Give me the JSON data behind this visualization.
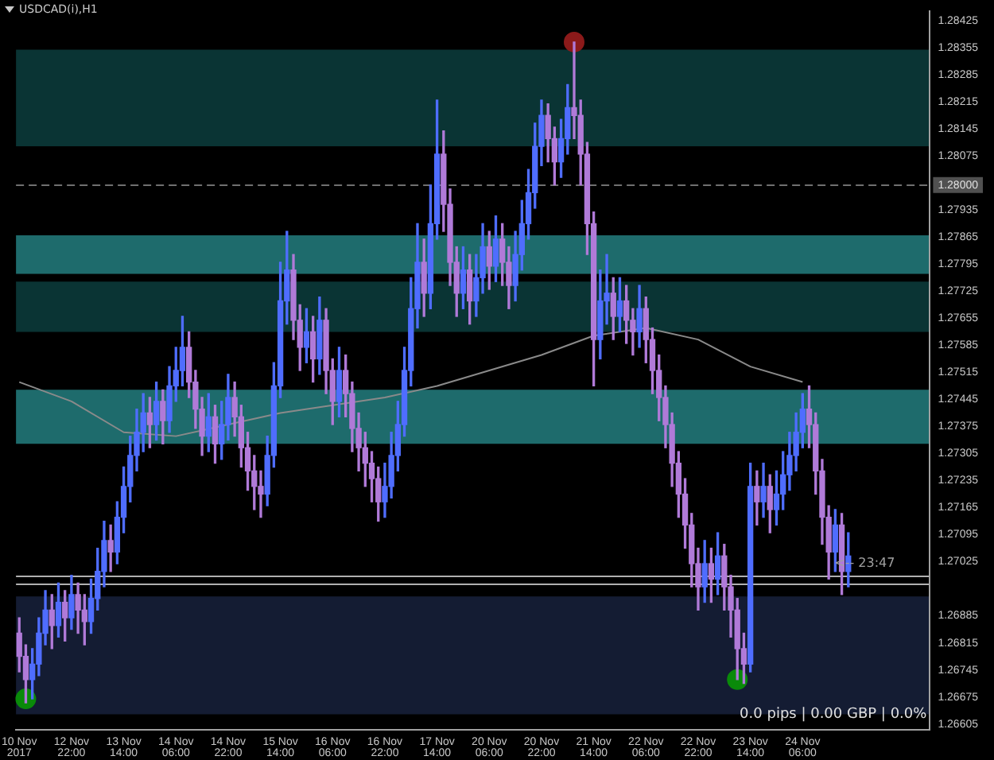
{
  "chart_data": {
    "type": "candlestick",
    "title": "USDCAD(i),H1",
    "categories": [
      "10 Nov 2017",
      null,
      null,
      null,
      null,
      null,
      null,
      null,
      "12 Nov 22:00",
      null,
      null,
      null,
      null,
      null,
      null,
      null,
      "13 Nov 14:00",
      null,
      null,
      null,
      null,
      null,
      null,
      null,
      "14 Nov 06:00",
      null,
      null,
      null,
      null,
      null,
      null,
      null,
      "14 Nov 22:00",
      null,
      null,
      null,
      null,
      null,
      null,
      null,
      "15 Nov 14:00",
      null,
      null,
      null,
      null,
      null,
      null,
      null,
      "16 Nov 06:00",
      null,
      null,
      null,
      null,
      null,
      null,
      null,
      "16 Nov 22:00",
      null,
      null,
      null,
      null,
      null,
      null,
      null,
      "17 Nov 14:00",
      null,
      null,
      null,
      null,
      null,
      null,
      null,
      "20 Nov 06:00",
      null,
      null,
      null,
      null,
      null,
      null,
      null,
      "20 Nov 22:00",
      null,
      null,
      null,
      null,
      null,
      null,
      null,
      "21 Nov 14:00",
      null,
      null,
      null,
      null,
      null,
      null,
      null,
      "22 Nov 06:00",
      null,
      null,
      null,
      null,
      null,
      null,
      null,
      "22 Nov 22:00",
      null,
      null,
      null,
      null,
      null,
      null,
      null,
      "23 Nov 14:00",
      null,
      null,
      null,
      null,
      null,
      null,
      null,
      "24 Nov 06:00",
      null,
      null,
      null,
      null,
      null,
      null,
      null,
      null,
      null,
      null,
      null,
      null,
      null,
      null,
      null,
      null,
      null,
      null,
      null
    ],
    "ohlc": [
      [
        1.2684,
        1.2688,
        1.2674,
        1.2678
      ],
      [
        1.2678,
        1.2681,
        1.2666,
        1.2672
      ],
      [
        1.2672,
        1.268,
        1.2667,
        1.2676
      ],
      [
        1.2676,
        1.2688,
        1.2673,
        1.2684
      ],
      [
        1.2684,
        1.2695,
        1.2681,
        1.269
      ],
      [
        1.269,
        1.2694,
        1.268,
        1.2686
      ],
      [
        1.2686,
        1.2697,
        1.2683,
        1.2692
      ],
      [
        1.2692,
        1.2695,
        1.2682,
        1.2688
      ],
      [
        1.2688,
        1.2699,
        1.2685,
        1.2694
      ],
      [
        1.2694,
        1.2697,
        1.2684,
        1.269
      ],
      [
        1.269,
        1.2694,
        1.2681,
        1.2687
      ],
      [
        1.2687,
        1.2698,
        1.2684,
        1.2693
      ],
      [
        1.2693,
        1.2706,
        1.269,
        1.27
      ],
      [
        1.27,
        1.2713,
        1.2696,
        1.2708
      ],
      [
        1.2708,
        1.2712,
        1.27,
        1.2705
      ],
      [
        1.2705,
        1.2718,
        1.2702,
        1.2714
      ],
      [
        1.2714,
        1.2727,
        1.271,
        1.2722
      ],
      [
        1.2722,
        1.2735,
        1.2718,
        1.273
      ],
      [
        1.273,
        1.2742,
        1.2726,
        1.2736
      ],
      [
        1.2736,
        1.2746,
        1.2731,
        1.2741
      ],
      [
        1.2741,
        1.2745,
        1.2732,
        1.2738
      ],
      [
        1.2738,
        1.2749,
        1.2734,
        1.2744
      ],
      [
        1.2744,
        1.2747,
        1.2733,
        1.2739
      ],
      [
        1.2739,
        1.2753,
        1.2736,
        1.2748
      ],
      [
        1.2748,
        1.2758,
        1.2744,
        1.2752
      ],
      [
        1.2752,
        1.2766,
        1.2748,
        1.2758
      ],
      [
        1.2758,
        1.2762,
        1.2745,
        1.2749
      ],
      [
        1.2749,
        1.2752,
        1.2737,
        1.2742
      ],
      [
        1.2742,
        1.2745,
        1.273,
        1.2735
      ],
      [
        1.2735,
        1.2746,
        1.2731,
        1.274
      ],
      [
        1.274,
        1.2743,
        1.2728,
        1.2733
      ],
      [
        1.2733,
        1.2744,
        1.2729,
        1.2738
      ],
      [
        1.2738,
        1.2751,
        1.2734,
        1.2745
      ],
      [
        1.2745,
        1.2749,
        1.2735,
        1.274
      ],
      [
        1.274,
        1.2743,
        1.2727,
        1.2732
      ],
      [
        1.2732,
        1.2736,
        1.2721,
        1.2726
      ],
      [
        1.2726,
        1.273,
        1.2716,
        1.2722
      ],
      [
        1.2722,
        1.2726,
        1.2714,
        1.272
      ],
      [
        1.272,
        1.2735,
        1.2717,
        1.273
      ],
      [
        1.273,
        1.2754,
        1.2727,
        1.2748
      ],
      [
        1.2748,
        1.278,
        1.2745,
        1.277
      ],
      [
        1.277,
        1.2788,
        1.2764,
        1.2778
      ],
      [
        1.2778,
        1.2782,
        1.276,
        1.2765
      ],
      [
        1.2765,
        1.2769,
        1.2752,
        1.2758
      ],
      [
        1.2758,
        1.2768,
        1.2754,
        1.2762
      ],
      [
        1.2762,
        1.2766,
        1.2749,
        1.2755
      ],
      [
        1.2755,
        1.2771,
        1.2751,
        1.2765
      ],
      [
        1.2765,
        1.2768,
        1.2746,
        1.2752
      ],
      [
        1.2752,
        1.2755,
        1.2738,
        1.2744
      ],
      [
        1.2744,
        1.2758,
        1.274,
        1.2752
      ],
      [
        1.2752,
        1.2756,
        1.274,
        1.2746
      ],
      [
        1.2746,
        1.2749,
        1.2731,
        1.2737
      ],
      [
        1.2737,
        1.2741,
        1.2726,
        1.2732
      ],
      [
        1.2732,
        1.2736,
        1.2722,
        1.2728
      ],
      [
        1.2728,
        1.2731,
        1.2718,
        1.2724
      ],
      [
        1.2724,
        1.2727,
        1.2713,
        1.2718
      ],
      [
        1.2718,
        1.2728,
        1.2714,
        1.2722
      ],
      [
        1.2722,
        1.2736,
        1.2719,
        1.273
      ],
      [
        1.273,
        1.2744,
        1.2726,
        1.2738
      ],
      [
        1.2738,
        1.2758,
        1.2735,
        1.2752
      ],
      [
        1.2752,
        1.2776,
        1.2748,
        1.2768
      ],
      [
        1.2768,
        1.279,
        1.2763,
        1.278
      ],
      [
        1.278,
        1.2786,
        1.2766,
        1.2772
      ],
      [
        1.2772,
        1.28,
        1.2768,
        1.279
      ],
      [
        1.279,
        1.2822,
        1.2786,
        1.2808
      ],
      [
        1.2808,
        1.2814,
        1.2788,
        1.2795
      ],
      [
        1.2795,
        1.2799,
        1.2774,
        1.278
      ],
      [
        1.278,
        1.2784,
        1.2766,
        1.2772
      ],
      [
        1.2772,
        1.2784,
        1.2768,
        1.2778
      ],
      [
        1.2778,
        1.2782,
        1.2764,
        1.277
      ],
      [
        1.277,
        1.2782,
        1.2766,
        1.2776
      ],
      [
        1.2776,
        1.279,
        1.2772,
        1.2784
      ],
      [
        1.2784,
        1.2788,
        1.2773,
        1.2779
      ],
      [
        1.2779,
        1.2792,
        1.2775,
        1.2786
      ],
      [
        1.2786,
        1.279,
        1.2774,
        1.278
      ],
      [
        1.278,
        1.2784,
        1.2768,
        1.2774
      ],
      [
        1.2774,
        1.2788,
        1.277,
        1.2782
      ],
      [
        1.2782,
        1.2796,
        1.2778,
        1.279
      ],
      [
        1.279,
        1.2804,
        1.2786,
        1.2798
      ],
      [
        1.2798,
        1.2816,
        1.2794,
        1.281
      ],
      [
        1.281,
        1.2822,
        1.2805,
        1.2818
      ],
      [
        1.2818,
        1.2821,
        1.2806,
        1.2812
      ],
      [
        1.2812,
        1.2815,
        1.28,
        1.2806
      ],
      [
        1.2806,
        1.2817,
        1.2802,
        1.2812
      ],
      [
        1.2812,
        1.2826,
        1.2808,
        1.282
      ],
      [
        1.282,
        1.2837,
        1.2812,
        1.2818
      ],
      [
        1.2818,
        1.2822,
        1.28,
        1.2808
      ],
      [
        1.2808,
        1.2811,
        1.2782,
        1.279
      ],
      [
        1.279,
        1.2793,
        1.2748,
        1.276
      ],
      [
        1.276,
        1.2778,
        1.2755,
        1.277
      ],
      [
        1.277,
        1.2782,
        1.2764,
        1.2772
      ],
      [
        1.2772,
        1.2776,
        1.276,
        1.2766
      ],
      [
        1.2766,
        1.2776,
        1.2762,
        1.277
      ],
      [
        1.277,
        1.2774,
        1.2759,
        1.2765
      ],
      [
        1.2765,
        1.2768,
        1.2756,
        1.2762
      ],
      [
        1.2762,
        1.2774,
        1.2758,
        1.2768
      ],
      [
        1.2768,
        1.2771,
        1.2754,
        1.276
      ],
      [
        1.276,
        1.2763,
        1.2746,
        1.2752
      ],
      [
        1.2752,
        1.2756,
        1.2739,
        1.2745
      ],
      [
        1.2745,
        1.2748,
        1.2732,
        1.2738
      ],
      [
        1.2738,
        1.2741,
        1.2722,
        1.2728
      ],
      [
        1.2728,
        1.2731,
        1.2714,
        1.272
      ],
      [
        1.272,
        1.2724,
        1.2706,
        1.2712
      ],
      [
        1.2712,
        1.2715,
        1.2696,
        1.2702
      ],
      [
        1.2702,
        1.2706,
        1.269,
        1.2696
      ],
      [
        1.2696,
        1.2708,
        1.2692,
        1.2702
      ],
      [
        1.2702,
        1.2706,
        1.2692,
        1.2698
      ],
      [
        1.2698,
        1.271,
        1.2694,
        1.2704
      ],
      [
        1.2704,
        1.2707,
        1.269,
        1.2696
      ],
      [
        1.2696,
        1.2699,
        1.2683,
        1.269
      ],
      [
        1.269,
        1.2693,
        1.2672,
        1.268
      ],
      [
        1.268,
        1.2684,
        1.2671,
        1.2676
      ],
      [
        1.2676,
        1.2728,
        1.2674,
        1.2722
      ],
      [
        1.2722,
        1.2726,
        1.2712,
        1.2718
      ],
      [
        1.2718,
        1.2728,
        1.2714,
        1.2722
      ],
      [
        1.2722,
        1.2725,
        1.271,
        1.2716
      ],
      [
        1.2716,
        1.2726,
        1.2712,
        1.272
      ],
      [
        1.272,
        1.2731,
        1.2716,
        1.2725
      ],
      [
        1.2725,
        1.2736,
        1.2721,
        1.273
      ],
      [
        1.273,
        1.2741,
        1.2726,
        1.2736
      ],
      [
        1.2736,
        1.2746,
        1.2732,
        1.2742
      ],
      [
        1.2742,
        1.2748,
        1.2732,
        1.2738
      ],
      [
        1.2738,
        1.2741,
        1.272,
        1.2726
      ],
      [
        1.2726,
        1.2729,
        1.2707,
        1.2714
      ],
      [
        1.2714,
        1.2717,
        1.2698,
        1.2705
      ],
      [
        1.2705,
        1.2716,
        1.27,
        1.2712
      ],
      [
        1.2712,
        1.2715,
        1.2694,
        1.27
      ],
      [
        1.27,
        1.271,
        1.2696,
        1.2704
      ],
      null,
      null,
      null,
      null,
      null,
      null,
      null,
      null,
      null,
      null,
      null,
      null
    ],
    "colors": [
      "#b07ad8",
      "#b07ad8",
      "#4f6dff",
      "#4f6dff",
      "#4f6dff",
      "#b07ad8",
      "#4f6dff",
      "#b07ad8",
      "#4f6dff",
      "#b07ad8",
      "#b07ad8",
      "#4f6dff",
      "#4f6dff",
      "#4f6dff",
      "#b07ad8",
      "#4f6dff",
      "#4f6dff",
      "#4f6dff",
      "#4f6dff",
      "#4f6dff",
      "#b07ad8",
      "#4f6dff",
      "#b07ad8",
      "#4f6dff",
      "#4f6dff",
      "#4f6dff",
      "#b07ad8",
      "#b07ad8",
      "#b07ad8",
      "#4f6dff",
      "#b07ad8",
      "#4f6dff",
      "#4f6dff",
      "#b07ad8",
      "#b07ad8",
      "#b07ad8",
      "#b07ad8",
      "#b07ad8",
      "#4f6dff",
      "#4f6dff",
      "#4f6dff",
      "#4f6dff",
      "#b07ad8",
      "#b07ad8",
      "#4f6dff",
      "#b07ad8",
      "#4f6dff",
      "#b07ad8",
      "#b07ad8",
      "#4f6dff",
      "#b07ad8",
      "#b07ad8",
      "#b07ad8",
      "#b07ad8",
      "#b07ad8",
      "#b07ad8",
      "#4f6dff",
      "#4f6dff",
      "#4f6dff",
      "#4f6dff",
      "#4f6dff",
      "#4f6dff",
      "#b07ad8",
      "#4f6dff",
      "#4f6dff",
      "#b07ad8",
      "#b07ad8",
      "#b07ad8",
      "#4f6dff",
      "#b07ad8",
      "#4f6dff",
      "#4f6dff",
      "#b07ad8",
      "#4f6dff",
      "#b07ad8",
      "#b07ad8",
      "#4f6dff",
      "#4f6dff",
      "#4f6dff",
      "#4f6dff",
      "#4f6dff",
      "#b07ad8",
      "#b07ad8",
      "#4f6dff",
      "#4f6dff",
      "#b07ad8",
      "#b07ad8",
      "#b07ad8",
      "#b07ad8",
      "#4f6dff",
      "#4f6dff",
      "#b07ad8",
      "#4f6dff",
      "#b07ad8",
      "#b07ad8",
      "#4f6dff",
      "#b07ad8",
      "#b07ad8",
      "#b07ad8",
      "#b07ad8",
      "#b07ad8",
      "#b07ad8",
      "#b07ad8",
      "#b07ad8",
      "#b07ad8",
      "#4f6dff",
      "#b07ad8",
      "#4f6dff",
      "#b07ad8",
      "#b07ad8",
      "#b07ad8",
      "#b07ad8",
      "#4f6dff",
      "#b07ad8",
      "#4f6dff",
      "#b07ad8",
      "#4f6dff",
      "#4f6dff",
      "#4f6dff",
      "#4f6dff",
      "#4f6dff",
      "#b07ad8",
      "#b07ad8",
      "#b07ad8",
      "#b07ad8",
      "#4f6dff",
      "#b07ad8",
      "#4f6dff",
      null,
      null,
      null,
      null,
      null,
      null,
      null,
      null,
      null,
      null,
      null,
      null
    ],
    "series": [
      {
        "type": "line",
        "color": "#8a8a8a",
        "x": [
          "10 Nov 2017",
          "12 Nov 22:00",
          "13 Nov 14:00",
          "14 Nov 06:00",
          "14 Nov 22:00",
          "15 Nov 14:00",
          "16 Nov 06:00",
          "16 Nov 22:00",
          "17 Nov 14:00",
          "20 Nov 06:00",
          "20 Nov 22:00",
          "21 Nov 14:00",
          "22 Nov 06:00",
          "22 Nov 22:00",
          "23 Nov 14:00",
          "24 Nov 06:00"
        ],
        "values": [
          1.2749,
          1.2744,
          1.2736,
          1.2735,
          1.2738,
          1.2741,
          1.2743,
          1.2745,
          1.2748,
          1.2752,
          1.2756,
          1.2761,
          1.2763,
          1.276,
          1.2753,
          1.2749
        ]
      },
      {
        "type": "scatter",
        "color": "#0a8a0a",
        "marker": "circle",
        "values": [
          null,
          1.2667,
          null,
          null,
          null,
          null,
          null,
          null,
          null,
          null,
          null,
          null,
          null,
          null,
          null,
          null,
          null,
          null,
          null,
          null,
          null,
          null,
          null,
          null,
          null,
          null,
          null,
          null,
          null,
          null,
          null,
          null,
          null,
          null,
          null,
          null,
          null,
          null,
          null,
          null,
          null,
          null,
          null,
          null,
          null,
          null,
          null,
          null,
          null,
          null,
          null,
          null,
          null,
          null,
          null,
          null,
          null,
          null,
          null,
          null,
          null,
          null,
          null,
          null,
          null,
          null,
          null,
          null,
          null,
          null,
          null,
          null,
          null,
          null,
          null,
          null,
          null,
          null,
          null,
          null,
          null,
          null,
          null,
          null,
          null,
          null,
          null,
          null,
          null,
          null,
          null,
          null,
          null,
          null,
          null,
          null,
          null,
          null,
          null,
          null,
          null,
          null,
          null,
          null,
          null,
          null,
          null,
          null,
          null,
          null,
          1.2672,
          null,
          null,
          null,
          null,
          null,
          null,
          null,
          null,
          null,
          null,
          null,
          null,
          null,
          null,
          null,
          null,
          null,
          null,
          null,
          null,
          null,
          null,
          null,
          null,
          null,
          null,
          null,
          null,
          null
        ]
      },
      {
        "type": "scatter",
        "color": "#8b1a1a",
        "marker": "circle",
        "values": [
          null,
          null,
          null,
          null,
          null,
          null,
          null,
          null,
          null,
          null,
          null,
          null,
          null,
          null,
          null,
          null,
          null,
          null,
          null,
          null,
          null,
          null,
          null,
          null,
          null,
          null,
          null,
          null,
          null,
          null,
          null,
          null,
          null,
          null,
          null,
          null,
          null,
          null,
          null,
          null,
          null,
          null,
          null,
          null,
          null,
          null,
          null,
          null,
          null,
          null,
          null,
          null,
          null,
          null,
          null,
          null,
          null,
          null,
          null,
          null,
          null,
          null,
          null,
          null,
          null,
          null,
          null,
          null,
          null,
          null,
          null,
          null,
          null,
          null,
          null,
          null,
          null,
          null,
          null,
          null,
          null,
          null,
          null,
          null,
          null,
          1.2837,
          null,
          null,
          null,
          null,
          null,
          null,
          null,
          null,
          null,
          null,
          null,
          null,
          null,
          null,
          null,
          null,
          null,
          null,
          null,
          null,
          null,
          null,
          null,
          null,
          null,
          null,
          null,
          null,
          null,
          null,
          null,
          null,
          null,
          null,
          null,
          null,
          null,
          null,
          null,
          null,
          null,
          null,
          null,
          null,
          null,
          null,
          null,
          null,
          null,
          null,
          null,
          null,
          null,
          null
        ]
      }
    ],
    "ylim": [
      1.2659,
      1.2845
    ],
    "yticks": [
      1.28425,
      1.28355,
      1.28285,
      1.28215,
      1.28145,
      1.28075,
      1.27935,
      1.27865,
      1.27795,
      1.27725,
      1.27655,
      1.27585,
      1.27515,
      1.27445,
      1.27375,
      1.27305,
      1.27235,
      1.27165,
      1.27095,
      1.27025,
      1.26885,
      1.26815,
      1.26745,
      1.26675,
      1.26605
    ],
    "bands": [
      {
        "axis": "y",
        "from": 1.2663,
        "to": 1.26935,
        "color": "#141c33"
      },
      {
        "axis": "y",
        "from": 1.281,
        "to": 1.2835,
        "color": "#0a3434"
      },
      {
        "axis": "y",
        "from": 1.2777,
        "to": 1.2787,
        "color": "#1e6b6c"
      },
      {
        "axis": "y",
        "from": 1.2762,
        "to": 1.2775,
        "color": "#0a3434"
      },
      {
        "axis": "y",
        "from": 1.2733,
        "to": 1.2747,
        "color": "#1e6b6c"
      }
    ],
    "ref_lines": [
      {
        "axis": "y",
        "value": 1.28,
        "label": "1.28000",
        "line_style": "dashed",
        "color": "#707070"
      },
      {
        "axis": "y",
        "value": 1.2699,
        "color": "#b0b0b0"
      },
      {
        "axis": "y",
        "value": 1.2697,
        "color": "#b0b0b0"
      }
    ],
    "annotations": [
      {
        "text": "<-- 23:47",
        "y": 1.26995
      },
      "0.0 pips | 0.00 GBP | 0.0%"
    ],
    "legend": false
  }
}
